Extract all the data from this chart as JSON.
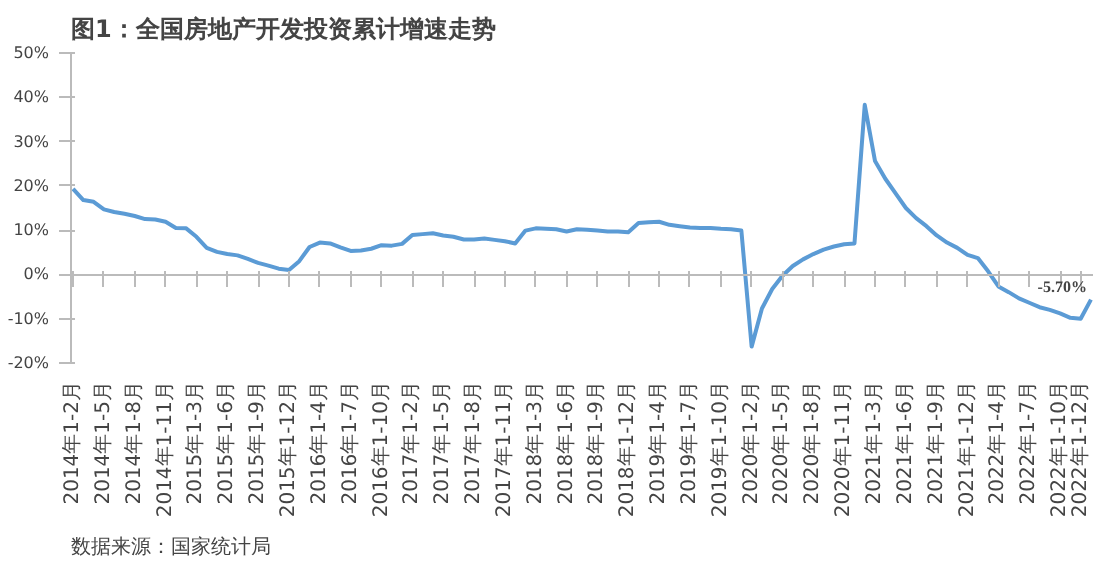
{
  "chart_data": {
    "type": "line",
    "title": "图1：全国房地产开发投资累计增速走势",
    "categories": [
      "2014年1-2月",
      null,
      null,
      "2014年1-5月",
      null,
      null,
      "2014年1-8月",
      null,
      null,
      "2014年1-11月",
      null,
      null,
      "2015年1-3月",
      null,
      null,
      "2015年1-6月",
      null,
      null,
      "2015年1-9月",
      null,
      null,
      "2015年1-12月",
      null,
      null,
      "2016年1-4月",
      null,
      null,
      "2016年1-7月",
      null,
      null,
      "2016年1-10月",
      null,
      null,
      "2017年1-2月",
      null,
      null,
      "2017年1-5月",
      null,
      null,
      "2017年1-8月",
      null,
      null,
      "2017年1-11月",
      null,
      null,
      "2018年1-3月",
      null,
      null,
      "2018年1-6月",
      null,
      null,
      "2018年1-9月",
      null,
      null,
      "2018年1-12月",
      null,
      null,
      "2019年1-4月",
      null,
      null,
      "2019年1-7月",
      null,
      null,
      "2019年1-10月",
      null,
      null,
      "2020年1-2月",
      null,
      null,
      "2020年1-5月",
      null,
      null,
      "2020年1-8月",
      null,
      null,
      "2020年1-11月",
      null,
      null,
      "2021年1-3月",
      null,
      null,
      "2021年1-6月",
      null,
      null,
      "2021年1-9月",
      null,
      null,
      "2021年1-12月",
      null,
      null,
      "2022年1-4月",
      null,
      null,
      "2022年1-7月",
      null,
      null,
      "2022年1-10月",
      null,
      "2022年1-12月",
      null
    ],
    "values": [
      19.3,
      16.8,
      16.4,
      14.7,
      14.1,
      13.7,
      13.2,
      12.5,
      12.4,
      11.9,
      10.5,
      10.4,
      8.5,
      6.0,
      5.1,
      4.6,
      4.3,
      3.5,
      2.6,
      2.0,
      1.3,
      1.0,
      3.0,
      6.2,
      7.2,
      7.0,
      6.1,
      5.3,
      5.4,
      5.8,
      6.6,
      6.5,
      6.9,
      8.9,
      9.1,
      9.3,
      8.8,
      8.5,
      7.9,
      7.9,
      8.1,
      7.8,
      7.5,
      7.0,
      9.9,
      10.4,
      10.3,
      10.2,
      9.7,
      10.2,
      10.1,
      9.9,
      9.7,
      9.7,
      9.5,
      11.6,
      11.8,
      11.9,
      11.2,
      10.9,
      10.6,
      10.5,
      10.5,
      10.3,
      10.2,
      9.9,
      -16.3,
      -7.7,
      -3.3,
      -0.3,
      1.9,
      3.4,
      4.6,
      5.6,
      6.3,
      6.8,
      7.0,
      38.3,
      25.6,
      21.6,
      18.3,
      15.0,
      12.7,
      10.9,
      8.8,
      7.2,
      6.0,
      4.4,
      3.7,
      0.7,
      -2.7,
      -4.0,
      -5.4,
      -6.4,
      -7.4,
      -8.0,
      -8.8,
      -9.8,
      -10.0,
      -5.7
    ],
    "value_labels": [
      null,
      null,
      null,
      null,
      null,
      null,
      null,
      null,
      null,
      null,
      null,
      null,
      null,
      null,
      null,
      null,
      null,
      null,
      null,
      null,
      null,
      null,
      null,
      null,
      null,
      null,
      null,
      null,
      null,
      null,
      null,
      null,
      null,
      null,
      null,
      null,
      null,
      null,
      null,
      null,
      null,
      null,
      null,
      null,
      null,
      null,
      null,
      null,
      null,
      null,
      null,
      null,
      null,
      null,
      null,
      null,
      null,
      null,
      null,
      null,
      null,
      null,
      null,
      null,
      null,
      null,
      null,
      null,
      null,
      null,
      null,
      null,
      null,
      null,
      null,
      null,
      null,
      null,
      null,
      null,
      null,
      null,
      null,
      null,
      null,
      null,
      null,
      null,
      null,
      null,
      null,
      null,
      null,
      null,
      null,
      null,
      null,
      null,
      null,
      "-5.70%"
    ],
    "color": "#5b9bd5",
    "ylim": [
      -20,
      50
    ],
    "yticks": [
      {
        "value": -20,
        "label": "-20%"
      },
      {
        "value": -10,
        "label": "-10%"
      },
      {
        "value": 0,
        "label": "0%"
      },
      {
        "value": 10,
        "label": "10%"
      },
      {
        "value": 20,
        "label": "20%"
      },
      {
        "value": 30,
        "label": "30%"
      },
      {
        "value": 40,
        "label": "40%"
      },
      {
        "value": 50,
        "label": "50%"
      }
    ],
    "annotations": [
      "数据来源：国家统计局"
    ]
  }
}
